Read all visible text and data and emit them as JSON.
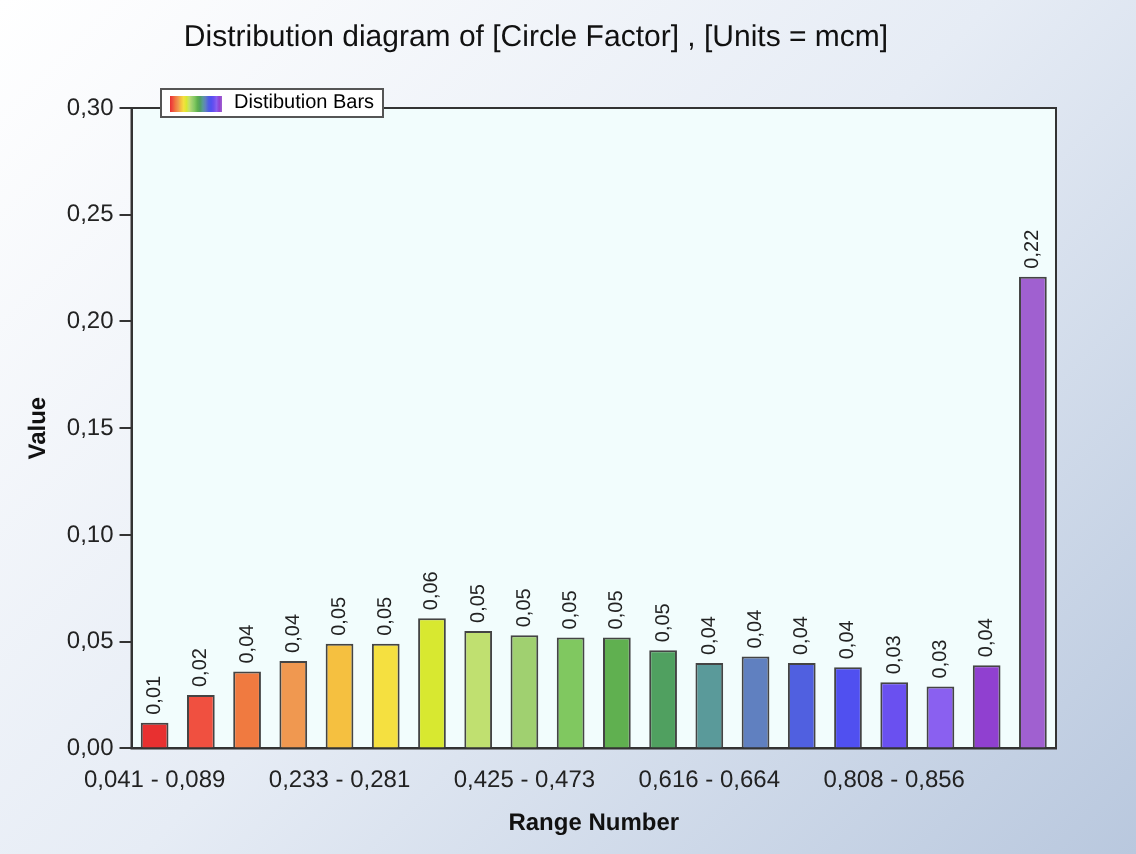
{
  "chart_data": {
    "type": "bar",
    "title": "Distribution diagram of [Circle Factor] , [Units = mcm]",
    "xlabel": "Range Number",
    "ylabel": "Value",
    "categories": [
      "0,041 - 0,089",
      null,
      null,
      null,
      "0,233 - 0,281",
      null,
      null,
      null,
      "0,425 - 0,473",
      null,
      null,
      null,
      "0,616 - 0,664",
      null,
      null,
      null,
      "0,808 - 0,856",
      null,
      null,
      null
    ],
    "series": [
      {
        "name": "Distibution Bars",
        "values": [
          0.012,
          0.025,
          0.036,
          0.041,
          0.049,
          0.049,
          0.061,
          0.055,
          0.053,
          0.052,
          0.052,
          0.046,
          0.04,
          0.043,
          0.04,
          0.038,
          0.031,
          0.029,
          0.039,
          0.221
        ],
        "colors": [
          "#e83030",
          "#f05040",
          "#f07a40",
          "#f09850",
          "#f5c040",
          "#f5e040",
          "#d8e830",
          "#c0e070",
          "#a0d070",
          "#80c860",
          "#60b050",
          "#50a060",
          "#5a9a9a",
          "#6080c0",
          "#5060e0",
          "#5050f0",
          "#6a50f0",
          "#8a60f0",
          "#9040d0",
          "#a060d0"
        ],
        "value_labels": [
          "0,01",
          "0,02",
          "0,04",
          "0,04",
          "0,05",
          "0,05",
          "0,06",
          "0,05",
          "0,05",
          "0,05",
          "0,05",
          "0,05",
          "0,04",
          "0,04",
          "0,04",
          "0,04",
          "0,03",
          "0,03",
          "0,04",
          "0,22"
        ]
      }
    ],
    "ylim": [
      0,
      0.3
    ],
    "yticks": [
      {
        "value": 0,
        "label": "0,00"
      },
      {
        "value": 0.05,
        "label": "0,05"
      },
      {
        "value": 0.1,
        "label": "0,10"
      },
      {
        "value": 0.15,
        "label": "0,15"
      },
      {
        "value": 0.2,
        "label": "0,20"
      },
      {
        "value": 0.25,
        "label": "0,25"
      },
      {
        "value": 0.3,
        "label": "0,30"
      }
    ],
    "grid": false,
    "legend": "top left"
  }
}
